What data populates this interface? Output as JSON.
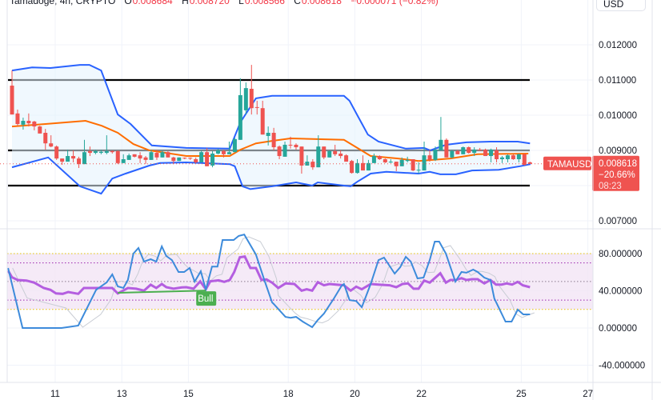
{
  "header": {
    "symbol": "Tamadoge, 4h, CRYPTO",
    "open_label": "O",
    "open": "0.008684",
    "high_label": "H",
    "high": "0.008720",
    "low_label": "L",
    "low": "0.008566",
    "close_label": "C",
    "close": "0.008618",
    "change": "−0.000071 (−0.82%)"
  },
  "currency_button": "USD",
  "price_axis": {
    "ticks": [
      "0.012000",
      "0.011000",
      "0.010000",
      "0.009000",
      "0.007000"
    ],
    "tick_values": [
      0.012,
      0.011,
      0.01,
      0.009,
      0.007
    ]
  },
  "osc_axis": {
    "ticks": [
      "80.000000",
      "40.000000",
      "0.000000",
      "-40.000000"
    ],
    "tick_values": [
      80,
      40,
      0,
      -40
    ]
  },
  "time_axis": {
    "ticks": [
      "11",
      "13",
      "15",
      "18",
      "20",
      "22",
      "25",
      "27"
    ],
    "tick_days": [
      11,
      13,
      15,
      18,
      20,
      22,
      25,
      27
    ]
  },
  "last_price": {
    "symbol_tag": "TAMAUSD",
    "price": "0.008618",
    "change_pct": "−20.66%",
    "countdown": "08:23",
    "value": 0.008618
  },
  "colors": {
    "up": "#26a69a",
    "down": "#ef5350",
    "bands": "#2962ff",
    "basis": "#ff6d00",
    "rsi": "#b45ee0",
    "stoch": "#3d8bdb",
    "bull": "#4caf50",
    "level": "#000000"
  },
  "levels": [
    0.011,
    0.009,
    0.008
  ],
  "candles": [
    [
      0.01084,
      0.01127,
      0.01002,
      0.01002
    ],
    [
      0.01005,
      0.01016,
      0.0097,
      0.00975
    ],
    [
      0.00973,
      0.00993,
      0.00959,
      0.00984
    ],
    [
      0.00984,
      0.01005,
      0.00968,
      0.00977
    ],
    [
      0.00982,
      0.00984,
      0.00957,
      0.00968
    ],
    [
      0.00968,
      0.0097,
      0.00948,
      0.00948
    ],
    [
      0.0095,
      0.00961,
      0.00902,
      0.0092
    ],
    [
      0.0092,
      0.00943,
      0.00909,
      0.00911
    ],
    [
      0.00911,
      0.00914,
      0.00873,
      0.00877
    ],
    [
      0.00877,
      0.00877,
      0.00859,
      0.00868
    ],
    [
      0.00868,
      0.00902,
      0.00868,
      0.00884
    ],
    [
      0.00884,
      0.009,
      0.00866,
      0.00877
    ],
    [
      0.00877,
      0.00882,
      0.0085,
      0.00861
    ],
    [
      0.00861,
      0.0093,
      0.00861,
      0.00895
    ],
    [
      0.00898,
      0.00911,
      0.00884,
      0.00893
    ],
    [
      0.00893,
      0.00902,
      0.00889,
      0.00898
    ],
    [
      0.00893,
      0.00902,
      0.00889,
      0.00896
    ],
    [
      0.00893,
      0.00943,
      0.00889,
      0.00898
    ],
    [
      0.00898,
      0.009,
      0.00891,
      0.00895
    ],
    [
      0.00898,
      0.009,
      0.00861,
      0.00864
    ],
    [
      0.00864,
      0.00889,
      0.00864,
      0.00875
    ],
    [
      0.00873,
      0.00891,
      0.00873,
      0.00886
    ],
    [
      0.00889,
      0.00889,
      0.0088,
      0.00882
    ],
    [
      0.00886,
      0.00895,
      0.00864,
      0.00877
    ],
    [
      0.0088,
      0.00884,
      0.00861,
      0.00873
    ],
    [
      0.00873,
      0.00902,
      0.00873,
      0.00895
    ],
    [
      0.00893,
      0.00902,
      0.00873,
      0.0088
    ],
    [
      0.0088,
      0.009,
      0.0088,
      0.00895
    ],
    [
      0.00895,
      0.00898,
      0.0088,
      0.0088
    ],
    [
      0.0088,
      0.00882,
      0.00861,
      0.0087
    ],
    [
      0.0087,
      0.0088,
      0.0087,
      0.0088
    ],
    [
      0.00879,
      0.0088,
      0.00875,
      0.00877
    ],
    [
      0.00879,
      0.0088,
      0.00873,
      0.00877
    ],
    [
      0.00875,
      0.0088,
      0.00864,
      0.00866
    ],
    [
      0.00866,
      0.009,
      0.00866,
      0.00895
    ],
    [
      0.00895,
      0.00907,
      0.00855,
      0.00855
    ],
    [
      0.00857,
      0.00898,
      0.00852,
      0.00891
    ],
    [
      0.00891,
      0.00905,
      0.00889,
      0.009
    ],
    [
      0.00898,
      0.00902,
      0.0088,
      0.00889
    ],
    [
      0.00889,
      0.00925,
      0.00889,
      0.00895
    ],
    [
      0.00895,
      0.00936,
      0.00895,
      0.00932
    ],
    [
      0.0093,
      0.01105,
      0.0093,
      0.01057
    ],
    [
      0.01014,
      0.01093,
      0.01002,
      0.01077
    ],
    [
      0.01075,
      0.01143,
      0.01002,
      0.0102
    ],
    [
      0.01023,
      0.01041,
      0.01002,
      0.01021
    ],
    [
      0.0102,
      0.01041,
      0.00945,
      0.00945
    ],
    [
      0.00941,
      0.00968,
      0.00914,
      0.0095
    ],
    [
      0.0095,
      0.00964,
      0.009,
      0.00909
    ],
    [
      0.00911,
      0.00914,
      0.00875,
      0.00884
    ],
    [
      0.00882,
      0.00925,
      0.00882,
      0.00916
    ],
    [
      0.00916,
      0.00939,
      0.00905,
      0.00914
    ],
    [
      0.00916,
      0.0092,
      0.00902,
      0.00909
    ],
    [
      0.00911,
      0.00911,
      0.00834,
      0.00857
    ],
    [
      0.00857,
      0.00886,
      0.00857,
      0.00868
    ],
    [
      0.00868,
      0.00875,
      0.00845,
      0.00852
    ],
    [
      0.00852,
      0.00943,
      0.00852,
      0.00911
    ],
    [
      0.00911,
      0.00911,
      0.00875,
      0.0088
    ],
    [
      0.0088,
      0.009,
      0.0088,
      0.00898
    ],
    [
      0.00898,
      0.00916,
      0.00884,
      0.00889
    ],
    [
      0.00891,
      0.009,
      0.00877,
      0.00884
    ],
    [
      0.00886,
      0.00889,
      0.00868,
      0.00868
    ],
    [
      0.0087,
      0.00873,
      0.00834,
      0.00836
    ],
    [
      0.00836,
      0.00875,
      0.00834,
      0.00864
    ],
    [
      0.00864,
      0.00886,
      0.00843,
      0.00843
    ],
    [
      0.00843,
      0.00873,
      0.00843,
      0.00864
    ],
    [
      0.00864,
      0.00891,
      0.00864,
      0.00884
    ],
    [
      0.00884,
      0.00886,
      0.00873,
      0.00875
    ],
    [
      0.00875,
      0.00877,
      0.00864,
      0.00866
    ],
    [
      0.00866,
      0.00875,
      0.00864,
      0.00868
    ],
    [
      0.00868,
      0.00868,
      0.00841,
      0.00855
    ],
    [
      0.00855,
      0.0088,
      0.00855,
      0.00873
    ],
    [
      0.0087,
      0.00882,
      0.00866,
      0.00873
    ],
    [
      0.00875,
      0.00875,
      0.00841,
      0.00843
    ],
    [
      0.00843,
      0.00866,
      0.00834,
      0.00845
    ],
    [
      0.00843,
      0.00925,
      0.00843,
      0.00886
    ],
    [
      0.00886,
      0.00902,
      0.00868,
      0.00873
    ],
    [
      0.00873,
      0.00911,
      0.0087,
      0.00902
    ],
    [
      0.009,
      0.00995,
      0.009,
      0.0093
    ],
    [
      0.0093,
      0.00934,
      0.0088,
      0.0088
    ],
    [
      0.0088,
      0.00902,
      0.00877,
      0.00898
    ],
    [
      0.00898,
      0.00902,
      0.00889,
      0.00889
    ],
    [
      0.00889,
      0.00911,
      0.00889,
      0.00909
    ],
    [
      0.00909,
      0.00911,
      0.00891,
      0.00893
    ],
    [
      0.00893,
      0.00909,
      0.00884,
      0.00902
    ],
    [
      0.00902,
      0.00907,
      0.009,
      0.009
    ],
    [
      0.00902,
      0.00905,
      0.00884,
      0.00884
    ],
    [
      0.00884,
      0.00905,
      0.00866,
      0.00902
    ],
    [
      0.009,
      0.00909,
      0.00866,
      0.00875
    ],
    [
      0.00875,
      0.00884,
      0.00864,
      0.0088
    ],
    [
      0.00875,
      0.00889,
      0.00866,
      0.00886
    ],
    [
      0.00886,
      0.00889,
      0.00873,
      0.00875
    ],
    [
      0.00875,
      0.00891,
      0.00866,
      0.00889
    ],
    [
      0.00889,
      0.00891,
      0.00857,
      0.00859
    ],
    [
      0.00866,
      0.00868,
      0.00862,
      0.008618
    ]
  ],
  "bollinger": {
    "upper": [
      [
        0,
        0.01127
      ],
      [
        3.6,
        0.01136
      ],
      [
        6.9,
        0.01134
      ],
      [
        12.2,
        0.01143
      ],
      [
        13.9,
        0.01143
      ],
      [
        16,
        0.01127
      ],
      [
        19,
        0.01002
      ],
      [
        21.3,
        0.00975
      ],
      [
        25.1,
        0.00914
      ],
      [
        31.3,
        0.00907
      ],
      [
        39.1,
        0.00905
      ],
      [
        41,
        0.0098
      ],
      [
        43.8,
        0.01048
      ],
      [
        46.7,
        0.01055
      ],
      [
        59.6,
        0.01055
      ],
      [
        60.6,
        0.01041
      ],
      [
        62,
        0.01
      ],
      [
        63.9,
        0.00945
      ],
      [
        65.8,
        0.00925
      ],
      [
        70.7,
        0.00905
      ],
      [
        74,
        0.00907
      ],
      [
        75.1,
        0.009
      ],
      [
        77.9,
        0.00916
      ],
      [
        81.6,
        0.00923
      ],
      [
        85.9,
        0.00925
      ],
      [
        90.8,
        0.00925
      ],
      [
        93,
        0.0092
      ]
    ],
    "basis": [
      [
        0,
        0.00968
      ],
      [
        6,
        0.00975
      ],
      [
        13.2,
        0.00984
      ],
      [
        16.1,
        0.0097
      ],
      [
        19,
        0.0095
      ],
      [
        21.8,
        0.00918
      ],
      [
        24.7,
        0.009
      ],
      [
        31.3,
        0.00884
      ],
      [
        39.1,
        0.00884
      ],
      [
        41,
        0.00902
      ],
      [
        43.8,
        0.0092
      ],
      [
        46.7,
        0.00927
      ],
      [
        50,
        0.00934
      ],
      [
        59.6,
        0.0093
      ],
      [
        62,
        0.00907
      ],
      [
        64.4,
        0.00884
      ],
      [
        69.3,
        0.00877
      ],
      [
        73,
        0.0087
      ],
      [
        78.7,
        0.00877
      ],
      [
        83.6,
        0.00889
      ],
      [
        92.7,
        0.00891
      ]
    ],
    "lower": [
      [
        0,
        0.00852
      ],
      [
        6.5,
        0.0088
      ],
      [
        12.2,
        0.00798
      ],
      [
        16,
        0.00777
      ],
      [
        18,
        0.0082
      ],
      [
        20.4,
        0.00834
      ],
      [
        24.7,
        0.00857
      ],
      [
        26.6,
        0.00864
      ],
      [
        31.3,
        0.00866
      ],
      [
        39.1,
        0.00861
      ],
      [
        40,
        0.00855
      ],
      [
        41.4,
        0.00798
      ],
      [
        42.8,
        0.0079
      ],
      [
        46.7,
        0.00798
      ],
      [
        51,
        0.00809
      ],
      [
        53.9,
        0.008
      ],
      [
        54.9,
        0.00809
      ],
      [
        59.6,
        0.008
      ],
      [
        60.8,
        0.00798
      ],
      [
        62,
        0.00811
      ],
      [
        64.4,
        0.00834
      ],
      [
        67.2,
        0.00839
      ],
      [
        73,
        0.00834
      ],
      [
        75,
        0.00839
      ],
      [
        76.9,
        0.00832
      ],
      [
        79.7,
        0.00832
      ],
      [
        82.6,
        0.00843
      ],
      [
        87.4,
        0.00845
      ],
      [
        91.2,
        0.00855
      ],
      [
        93.1,
        0.00861
      ]
    ]
  },
  "oscillator": {
    "band_levels": [
      80,
      20
    ],
    "inner_levels": [
      70,
      30
    ],
    "mid_level": 50,
    "rsi": [
      [
        -0.7,
        61.7
      ],
      [
        0,
        54.5
      ],
      [
        1,
        51.6
      ],
      [
        2.6,
        51
      ],
      [
        4,
        48.8
      ],
      [
        5.7,
        43
      ],
      [
        6.9,
        41
      ],
      [
        7.9,
        37.2
      ],
      [
        9.1,
        36.7
      ],
      [
        10.1,
        38.7
      ],
      [
        11.9,
        36.7
      ],
      [
        12.9,
        43
      ],
      [
        18,
        43
      ],
      [
        19,
        37.2
      ],
      [
        20.8,
        43
      ],
      [
        22.3,
        42.2
      ],
      [
        23.7,
        40.2
      ],
      [
        24.9,
        46.5
      ],
      [
        25.9,
        43
      ],
      [
        26.9,
        47.3
      ],
      [
        27.7,
        43.9
      ],
      [
        29,
        42.2
      ],
      [
        30.5,
        43.6
      ],
      [
        31.3,
        43.9
      ],
      [
        32.6,
        42.2
      ],
      [
        33.8,
        50.2
      ],
      [
        34.8,
        41.6
      ],
      [
        35.6,
        50.2
      ],
      [
        37.1,
        51.3
      ],
      [
        38.1,
        49.6
      ],
      [
        39.1,
        51.6
      ],
      [
        39.9,
        60.2
      ],
      [
        40.9,
        76
      ],
      [
        41.8,
        76.8
      ],
      [
        42.8,
        64.5
      ],
      [
        43.8,
        64.5
      ],
      [
        44.8,
        51.6
      ],
      [
        45.7,
        52.2
      ],
      [
        46.7,
        48.8
      ],
      [
        47.8,
        43
      ],
      [
        49.1,
        47.9
      ],
      [
        50.7,
        47.3
      ],
      [
        52,
        40.2
      ],
      [
        52.9,
        41.6
      ],
      [
        53.9,
        40.2
      ],
      [
        54.9,
        49.3
      ],
      [
        56,
        45.9
      ],
      [
        57,
        47.3
      ],
      [
        59.6,
        45.9
      ],
      [
        60.8,
        40.2
      ],
      [
        61.8,
        44.5
      ],
      [
        62.8,
        41.6
      ],
      [
        64.4,
        47.3
      ],
      [
        65.8,
        46.7
      ],
      [
        67.8,
        45.9
      ],
      [
        69,
        43.9
      ],
      [
        70.1,
        47.3
      ],
      [
        71.1,
        47.9
      ],
      [
        72.1,
        42.2
      ],
      [
        73,
        42.2
      ],
      [
        74,
        51
      ],
      [
        75,
        48.8
      ],
      [
        76.9,
        58.8
      ],
      [
        77.9,
        48.8
      ],
      [
        78.7,
        51.6
      ],
      [
        79.7,
        51.6
      ],
      [
        80.7,
        53.6
      ],
      [
        81.6,
        51.6
      ],
      [
        82.6,
        52.5
      ],
      [
        83.6,
        52.5
      ],
      [
        84.8,
        47.9
      ],
      [
        85.9,
        51.6
      ],
      [
        86.9,
        46.7
      ],
      [
        87.9,
        46.7
      ],
      [
        88.8,
        47.9
      ],
      [
        89.8,
        46.7
      ],
      [
        90.8,
        49.6
      ],
      [
        91.7,
        45.9
      ],
      [
        93,
        43.9
      ]
    ],
    "stoch_k": [
      [
        -0.7,
        64.5
      ],
      [
        1.9,
        0
      ],
      [
        8.9,
        0
      ],
      [
        11.9,
        2.6
      ],
      [
        15.1,
        41
      ],
      [
        17,
        49
      ],
      [
        18,
        57.6
      ],
      [
        19,
        44.7
      ],
      [
        20,
        43
      ],
      [
        20.8,
        51.6
      ],
      [
        21.8,
        80
      ],
      [
        22.7,
        86
      ],
      [
        23.7,
        71.4
      ],
      [
        24.9,
        74
      ],
      [
        25.9,
        71.4
      ],
      [
        26.9,
        87.7
      ],
      [
        27.7,
        77.4
      ],
      [
        28.7,
        73
      ],
      [
        29.9,
        60.2
      ],
      [
        30.9,
        60.2
      ],
      [
        31.9,
        64.5
      ],
      [
        32.8,
        49.9
      ],
      [
        33.9,
        61
      ],
      [
        34.8,
        41.3
      ],
      [
        35.9,
        66
      ],
      [
        36.9,
        66
      ],
      [
        37.8,
        94.6
      ],
      [
        39.8,
        94.6
      ],
      [
        40.7,
        99
      ],
      [
        41.7,
        100.6
      ],
      [
        43.8,
        79
      ],
      [
        45.3,
        51.6
      ],
      [
        46.7,
        27.5
      ],
      [
        47,
        25.8
      ],
      [
        49.1,
        12
      ],
      [
        50,
        11
      ],
      [
        51,
        12
      ],
      [
        52.2,
        6.9
      ],
      [
        53.9,
        0.9
      ],
      [
        54.9,
        8.6
      ],
      [
        56,
        15.5
      ],
      [
        57.8,
        31.8
      ],
      [
        59.2,
        45.6
      ],
      [
        59.6,
        47.3
      ],
      [
        60.6,
        30
      ],
      [
        61.8,
        29
      ],
      [
        62.8,
        22.4
      ],
      [
        64.4,
        47.3
      ],
      [
        65.8,
        73
      ],
      [
        66.8,
        75.7
      ],
      [
        68.7,
        58.5
      ],
      [
        69.7,
        65.4
      ],
      [
        70.7,
        76.6
      ],
      [
        71.6,
        71.4
      ],
      [
        72.8,
        53.3
      ],
      [
        73.9,
        54.2
      ],
      [
        75,
        73
      ],
      [
        75.9,
        92.9
      ],
      [
        76.7,
        92.9
      ],
      [
        77.9,
        80
      ],
      [
        79.6,
        49.9
      ],
      [
        80.7,
        60.2
      ],
      [
        81.6,
        59.4
      ],
      [
        82.8,
        62.8
      ],
      [
        83.6,
        60.2
      ],
      [
        84.8,
        54.2
      ],
      [
        85.9,
        51.6
      ],
      [
        86.6,
        31.8
      ],
      [
        88.6,
        6.9
      ],
      [
        89.7,
        6.9
      ],
      [
        90.8,
        19.8
      ],
      [
        91.8,
        14.6
      ],
      [
        93,
        14.6
      ]
    ],
    "divergence": {
      "label": "Bull",
      "from": [
        19,
        37.8
      ],
      "to": [
        34.8,
        40.3
      ]
    }
  }
}
